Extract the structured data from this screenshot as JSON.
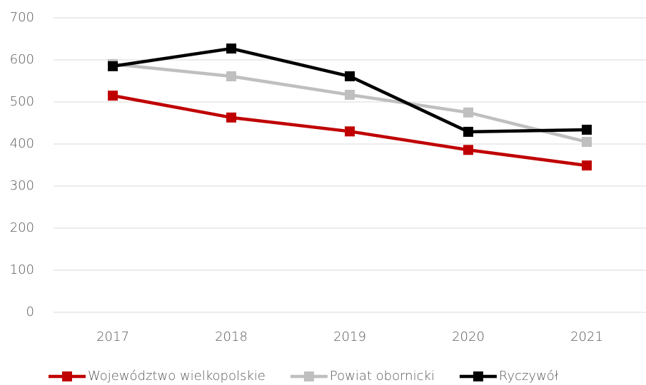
{
  "chart_data": {
    "type": "line",
    "categories": [
      "2017",
      "2018",
      "2019",
      "2020",
      "2021"
    ],
    "series": [
      {
        "name": "Województwo wielkopolskie",
        "color": "#c00000",
        "values": [
          515,
          463,
          430,
          386,
          349
        ]
      },
      {
        "name": "Powiat obornicki",
        "color": "#bfbfbf",
        "values": [
          590,
          561,
          517,
          475,
          405
        ]
      },
      {
        "name": "Ryczywół",
        "color": "#000000",
        "values": [
          585,
          627,
          561,
          429,
          434
        ]
      }
    ],
    "ylim": [
      0,
      700
    ],
    "yticks": [
      0,
      100,
      200,
      300,
      400,
      500,
      600,
      700
    ],
    "grid": true,
    "legend": "bottom"
  }
}
